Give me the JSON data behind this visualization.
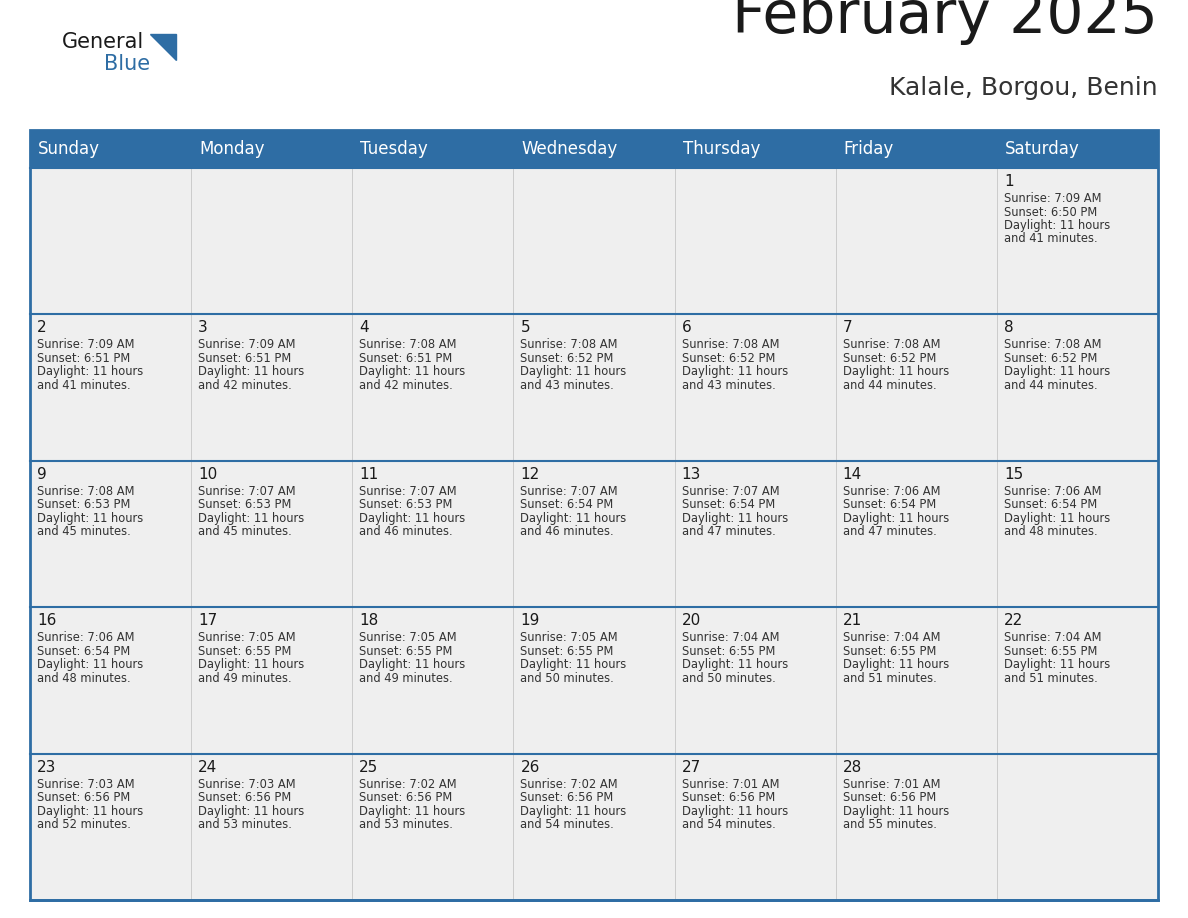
{
  "title": "February 2025",
  "subtitle": "Kalale, Borgou, Benin",
  "header_bg": "#2E6DA4",
  "header_text_color": "#FFFFFF",
  "cell_bg": "#EFEFEF",
  "border_color": "#2E6DA4",
  "row_sep_color": "#2E6DA4",
  "day_headers": [
    "Sunday",
    "Monday",
    "Tuesday",
    "Wednesday",
    "Thursday",
    "Friday",
    "Saturday"
  ],
  "title_color": "#1a1a1a",
  "subtitle_color": "#333333",
  "day_number_color": "#1a1a1a",
  "cell_text_color": "#333333",
  "calendar": [
    [
      null,
      null,
      null,
      null,
      null,
      null,
      1
    ],
    [
      2,
      3,
      4,
      5,
      6,
      7,
      8
    ],
    [
      9,
      10,
      11,
      12,
      13,
      14,
      15
    ],
    [
      16,
      17,
      18,
      19,
      20,
      21,
      22
    ],
    [
      23,
      24,
      25,
      26,
      27,
      28,
      null
    ]
  ],
  "sunrise": {
    "1": "7:09 AM",
    "2": "7:09 AM",
    "3": "7:09 AM",
    "4": "7:08 AM",
    "5": "7:08 AM",
    "6": "7:08 AM",
    "7": "7:08 AM",
    "8": "7:08 AM",
    "9": "7:08 AM",
    "10": "7:07 AM",
    "11": "7:07 AM",
    "12": "7:07 AM",
    "13": "7:07 AM",
    "14": "7:06 AM",
    "15": "7:06 AM",
    "16": "7:06 AM",
    "17": "7:05 AM",
    "18": "7:05 AM",
    "19": "7:05 AM",
    "20": "7:04 AM",
    "21": "7:04 AM",
    "22": "7:04 AM",
    "23": "7:03 AM",
    "24": "7:03 AM",
    "25": "7:02 AM",
    "26": "7:02 AM",
    "27": "7:01 AM",
    "28": "7:01 AM"
  },
  "sunset": {
    "1": "6:50 PM",
    "2": "6:51 PM",
    "3": "6:51 PM",
    "4": "6:51 PM",
    "5": "6:52 PM",
    "6": "6:52 PM",
    "7": "6:52 PM",
    "8": "6:52 PM",
    "9": "6:53 PM",
    "10": "6:53 PM",
    "11": "6:53 PM",
    "12": "6:54 PM",
    "13": "6:54 PM",
    "14": "6:54 PM",
    "15": "6:54 PM",
    "16": "6:54 PM",
    "17": "6:55 PM",
    "18": "6:55 PM",
    "19": "6:55 PM",
    "20": "6:55 PM",
    "21": "6:55 PM",
    "22": "6:55 PM",
    "23": "6:56 PM",
    "24": "6:56 PM",
    "25": "6:56 PM",
    "26": "6:56 PM",
    "27": "6:56 PM",
    "28": "6:56 PM"
  },
  "daylight": {
    "1": "11 hours and 41 minutes.",
    "2": "11 hours and 41 minutes.",
    "3": "11 hours and 42 minutes.",
    "4": "11 hours and 42 minutes.",
    "5": "11 hours and 43 minutes.",
    "6": "11 hours and 43 minutes.",
    "7": "11 hours and 44 minutes.",
    "8": "11 hours and 44 minutes.",
    "9": "11 hours and 45 minutes.",
    "10": "11 hours and 45 minutes.",
    "11": "11 hours and 46 minutes.",
    "12": "11 hours and 46 minutes.",
    "13": "11 hours and 47 minutes.",
    "14": "11 hours and 47 minutes.",
    "15": "11 hours and 48 minutes.",
    "16": "11 hours and 48 minutes.",
    "17": "11 hours and 49 minutes.",
    "18": "11 hours and 49 minutes.",
    "19": "11 hours and 50 minutes.",
    "20": "11 hours and 50 minutes.",
    "21": "11 hours and 51 minutes.",
    "22": "11 hours and 51 minutes.",
    "23": "11 hours and 52 minutes.",
    "24": "11 hours and 53 minutes.",
    "25": "11 hours and 53 minutes.",
    "26": "11 hours and 54 minutes.",
    "27": "11 hours and 54 minutes.",
    "28": "11 hours and 55 minutes."
  },
  "figsize": [
    11.88,
    9.18
  ],
  "dpi": 100
}
